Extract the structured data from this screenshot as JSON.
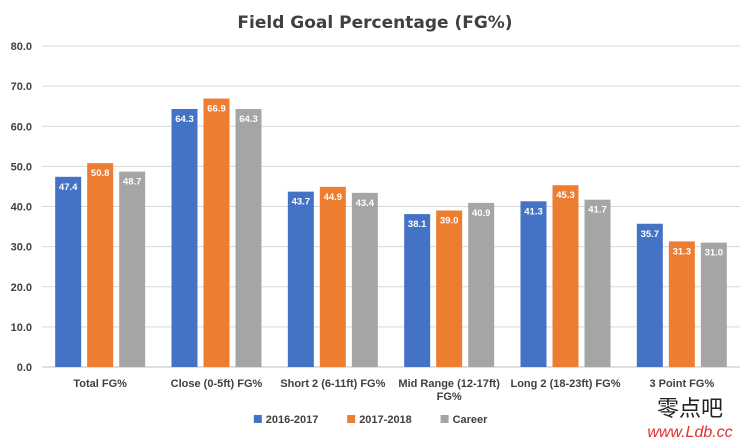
{
  "chart_data": {
    "type": "bar",
    "title": "Field Goal Percentage (FG%)",
    "xlabel": "",
    "ylabel": "",
    "ylim": [
      0,
      80
    ],
    "yticks": [
      "0.0",
      "10.0",
      "20.0",
      "30.0",
      "40.0",
      "50.0",
      "60.0",
      "70.0",
      "80.0"
    ],
    "grid": true,
    "legend_position": "bottom",
    "categories": [
      "Total FG%",
      "Close (0-5ft) FG%",
      "Short 2 (6-11ft) FG%",
      "Mid Range (12-17ft) FG%",
      "Long 2 (18-23ft) FG%",
      "3 Point FG%"
    ],
    "series": [
      {
        "name": "2016-2017",
        "color": "#4472c4",
        "values": [
          47.4,
          64.3,
          43.7,
          38.1,
          41.3,
          35.7
        ]
      },
      {
        "name": "2017-2018",
        "color": "#ed7d31",
        "values": [
          50.8,
          66.9,
          44.9,
          39.0,
          45.3,
          31.3
        ]
      },
      {
        "name": "Career",
        "color": "#a5a5a5",
        "values": [
          48.7,
          64.3,
          43.4,
          40.9,
          41.7,
          31.0
        ]
      }
    ]
  },
  "watermark": {
    "cn_text": "零点吧",
    "url_text": "www.Ldb.cc"
  }
}
